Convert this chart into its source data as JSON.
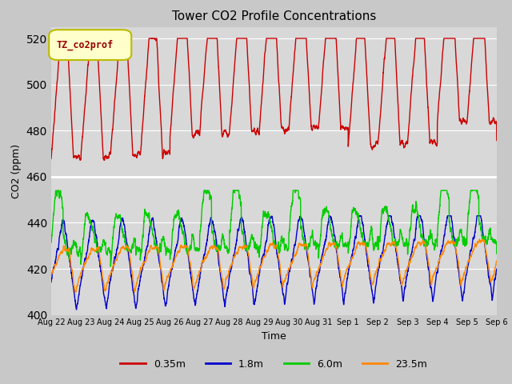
{
  "title": "Tower CO2 Profile Concentrations",
  "xlabel": "Time",
  "ylabel": "CO2 (ppm)",
  "ylim": [
    400,
    525
  ],
  "yticks": [
    400,
    420,
    440,
    460,
    480,
    500,
    520
  ],
  "legend_label": "TZ_co2prof",
  "series_labels": [
    "0.35m",
    "1.8m",
    "6.0m",
    "23.5m"
  ],
  "series_colors": [
    "#cc0000",
    "#0000cc",
    "#00cc00",
    "#ff8800"
  ],
  "bg_color": "#d8d8d8",
  "n_days": 15,
  "tick_labels": [
    "Aug 22",
    "Aug 23",
    "Aug 24",
    "Aug 25",
    "Aug 26",
    "Aug 27",
    "Aug 28",
    "Aug 29",
    "Aug 30",
    "Aug 31",
    "Sep 1",
    "Sep 2",
    "Sep 3",
    "Sep 4",
    "Sep 5",
    "Sep 6"
  ],
  "line_width": 1.0
}
